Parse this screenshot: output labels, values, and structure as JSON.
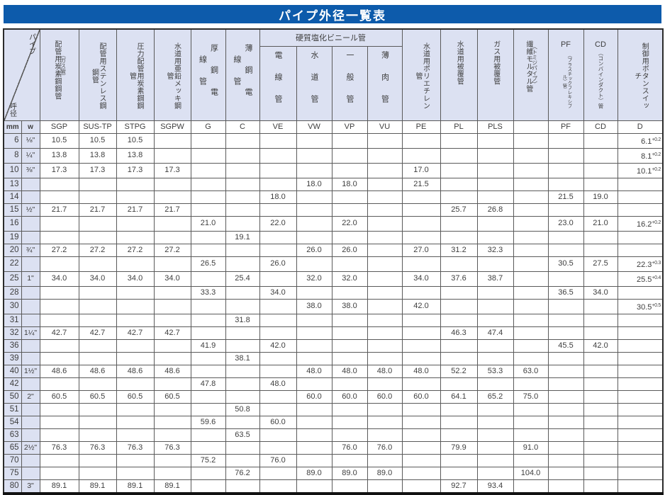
{
  "page_title": "パイプ外径一覧表",
  "colors": {
    "title_bg": "#0d5bab",
    "header_bg": "#dce1f2",
    "grid": "#5a5a5a",
    "text": "#3e3e3e"
  },
  "headers": {
    "sgp": {
      "title": "配管用炭素鋼鋼管",
      "paren": "（ガス管）",
      "code": "SGP"
    },
    "sus": {
      "title": "配管用ステンレス鋼鋼管",
      "code": "SUS-TP"
    },
    "stpg": {
      "title": "圧力配管用炭素鋼鋼管",
      "code": "STPG"
    },
    "sgpw": {
      "title": "水道用亜鉛メッキ鋼管",
      "code": "SGPW"
    },
    "g": {
      "title": "厚鋼電線管",
      "code": "G"
    },
    "c": {
      "title": "薄鋼電線管",
      "code": "C"
    },
    "vinyl_group": {
      "title": "硬質塩化ビニール管"
    },
    "ve": {
      "title": "電線管",
      "code": "VE"
    },
    "vw": {
      "title": "水道管",
      "code": "VW"
    },
    "vp": {
      "title": "一般管",
      "code": "VP"
    },
    "vu": {
      "title": "薄肉管",
      "code": "VU"
    },
    "pe": {
      "title": "水道用ポリエチレン管",
      "code": "PE"
    },
    "pl": {
      "title": "水道用被覆管",
      "code": "PL"
    },
    "pls": {
      "title": "ガス用被覆管",
      "code": "PLS"
    },
    "fm": {
      "title": "繊維モルタル管",
      "paren": "〈トミジパイプ〉",
      "code": ""
    },
    "pf": {
      "prefix": "PF",
      "small": "（プラスチックフレキシブル）管",
      "code": "PF"
    },
    "cd": {
      "prefix": "CD",
      "small": "（コンバインダクト）管",
      "code": "CD"
    },
    "d": {
      "title": "制御用ボタンスイッチ",
      "code": "D"
    }
  },
  "table": {
    "corner_top_right": "パイプ",
    "corner_bottom_left": "呼径",
    "unit_mm": "mm",
    "unit_w": "w",
    "col_keys": [
      "sgp",
      "sus",
      "stpg",
      "sgpw",
      "g",
      "c",
      "ve",
      "vw",
      "vp",
      "vu",
      "pe",
      "pl",
      "pls",
      "fm",
      "pf",
      "cd",
      "d"
    ],
    "rows": [
      {
        "mm": "6",
        "w": "⅛\"",
        "cells": [
          "10.5",
          "10.5",
          "10.5",
          "",
          "",
          "",
          "",
          "",
          "",
          "",
          "",
          "",
          "",
          "",
          "",
          "",
          "6.1^+0.2"
        ]
      },
      {
        "mm": "8",
        "w": "¼\"",
        "cells": [
          "13.8",
          "13.8",
          "13.8",
          "",
          "",
          "",
          "",
          "",
          "",
          "",
          "",
          "",
          "",
          "",
          "",
          "",
          "8.1^+0.2"
        ]
      },
      {
        "mm": "10",
        "w": "⅜\"",
        "cells": [
          "17.3",
          "17.3",
          "17.3",
          "17.3",
          "",
          "",
          "",
          "",
          "",
          "",
          "17.0",
          "",
          "",
          "",
          "",
          "",
          "10.1^+0.2"
        ]
      },
      {
        "mm": "13",
        "w": "",
        "cells": [
          "",
          "",
          "",
          "",
          "",
          "",
          "",
          "18.0",
          "18.0",
          "",
          "21.5",
          "",
          "",
          "",
          "",
          "",
          ""
        ]
      },
      {
        "mm": "14",
        "w": "",
        "cells": [
          "",
          "",
          "",
          "",
          "",
          "",
          "18.0",
          "",
          "",
          "",
          "",
          "",
          "",
          "",
          "21.5",
          "19.0",
          ""
        ]
      },
      {
        "mm": "15",
        "w": "½\"",
        "cells": [
          "21.7",
          "21.7",
          "21.7",
          "21.7",
          "",
          "",
          "",
          "",
          "",
          "",
          "",
          "25.7",
          "26.8",
          "",
          "",
          "",
          ""
        ]
      },
      {
        "mm": "16",
        "w": "",
        "cells": [
          "",
          "",
          "",
          "",
          "21.0",
          "",
          "22.0",
          "",
          "22.0",
          "",
          "",
          "",
          "",
          "",
          "23.0",
          "21.0",
          "16.2^+0.2"
        ]
      },
      {
        "mm": "19",
        "w": "",
        "cells": [
          "",
          "",
          "",
          "",
          "",
          "19.1",
          "",
          "",
          "",
          "",
          "",
          "",
          "",
          "",
          "",
          "",
          ""
        ]
      },
      {
        "mm": "20",
        "w": "¾\"",
        "cells": [
          "27.2",
          "27.2",
          "27.2",
          "27.2",
          "",
          "",
          "",
          "26.0",
          "26.0",
          "",
          "27.0",
          "31.2",
          "32.3",
          "",
          "",
          "",
          ""
        ]
      },
      {
        "mm": "22",
        "w": "",
        "cells": [
          "",
          "",
          "",
          "",
          "26.5",
          "",
          "26.0",
          "",
          "",
          "",
          "",
          "",
          "",
          "",
          "30.5",
          "27.5",
          "22.3^+0.3"
        ]
      },
      {
        "mm": "25",
        "w": "1\"",
        "cells": [
          "34.0",
          "34.0",
          "34.0",
          "34.0",
          "",
          "25.4",
          "",
          "32.0",
          "32.0",
          "",
          "34.0",
          "37.6",
          "38.7",
          "",
          "",
          "",
          "25.5^+0.4"
        ]
      },
      {
        "mm": "28",
        "w": "",
        "cells": [
          "",
          "",
          "",
          "",
          "33.3",
          "",
          "34.0",
          "",
          "",
          "",
          "",
          "",
          "",
          "",
          "36.5",
          "34.0",
          ""
        ]
      },
      {
        "mm": "30",
        "w": "",
        "cells": [
          "",
          "",
          "",
          "",
          "",
          "",
          "",
          "38.0",
          "38.0",
          "",
          "42.0",
          "",
          "",
          "",
          "",
          "",
          "30.5^+0.5"
        ]
      },
      {
        "mm": "31",
        "w": "",
        "cells": [
          "",
          "",
          "",
          "",
          "",
          "31.8",
          "",
          "",
          "",
          "",
          "",
          "",
          "",
          "",
          "",
          "",
          ""
        ]
      },
      {
        "mm": "32",
        "w": "1¼\"",
        "cells": [
          "42.7",
          "42.7",
          "42.7",
          "42.7",
          "",
          "",
          "",
          "",
          "",
          "",
          "",
          "46.3",
          "47.4",
          "",
          "",
          "",
          ""
        ]
      },
      {
        "mm": "36",
        "w": "",
        "cells": [
          "",
          "",
          "",
          "",
          "41.9",
          "",
          "42.0",
          "",
          "",
          "",
          "",
          "",
          "",
          "",
          "45.5",
          "42.0",
          ""
        ]
      },
      {
        "mm": "39",
        "w": "",
        "cells": [
          "",
          "",
          "",
          "",
          "",
          "38.1",
          "",
          "",
          "",
          "",
          "",
          "",
          "",
          "",
          "",
          "",
          ""
        ]
      },
      {
        "mm": "40",
        "w": "1½\"",
        "cells": [
          "48.6",
          "48.6",
          "48.6",
          "48.6",
          "",
          "",
          "",
          "48.0",
          "48.0",
          "48.0",
          "48.0",
          "52.2",
          "53.3",
          "63.0",
          "",
          "",
          ""
        ]
      },
      {
        "mm": "42",
        "w": "",
        "cells": [
          "",
          "",
          "",
          "",
          "47.8",
          "",
          "48.0",
          "",
          "",
          "",
          "",
          "",
          "",
          "",
          "",
          "",
          ""
        ]
      },
      {
        "mm": "50",
        "w": "2\"",
        "cells": [
          "60.5",
          "60.5",
          "60.5",
          "60.5",
          "",
          "",
          "",
          "60.0",
          "60.0",
          "60.0",
          "60.0",
          "64.1",
          "65.2",
          "75.0",
          "",
          "",
          ""
        ]
      },
      {
        "mm": "51",
        "w": "",
        "cells": [
          "",
          "",
          "",
          "",
          "",
          "50.8",
          "",
          "",
          "",
          "",
          "",
          "",
          "",
          "",
          "",
          "",
          ""
        ]
      },
      {
        "mm": "54",
        "w": "",
        "cells": [
          "",
          "",
          "",
          "",
          "59.6",
          "",
          "60.0",
          "",
          "",
          "",
          "",
          "",
          "",
          "",
          "",
          "",
          ""
        ]
      },
      {
        "mm": "63",
        "w": "",
        "cells": [
          "",
          "",
          "",
          "",
          "",
          "63.5",
          "",
          "",
          "",
          "",
          "",
          "",
          "",
          "",
          "",
          "",
          ""
        ]
      },
      {
        "mm": "65",
        "w": "2½\"",
        "cells": [
          "76.3",
          "76.3",
          "76.3",
          "76.3",
          "",
          "",
          "",
          "",
          "76.0",
          "76.0",
          "",
          "79.9",
          "",
          "91.0",
          "",
          "",
          ""
        ]
      },
      {
        "mm": "70",
        "w": "",
        "cells": [
          "",
          "",
          "",
          "",
          "75.2",
          "",
          "76.0",
          "",
          "",
          "",
          "",
          "",
          "",
          "",
          "",
          "",
          ""
        ]
      },
      {
        "mm": "75",
        "w": "",
        "cells": [
          "",
          "",
          "",
          "",
          "",
          "76.2",
          "",
          "89.0",
          "89.0",
          "89.0",
          "",
          "",
          "",
          "104.0",
          "",
          "",
          ""
        ]
      },
      {
        "mm": "80",
        "w": "3\"",
        "cells": [
          "89.1",
          "89.1",
          "89.1",
          "89.1",
          "",
          "",
          "",
          "",
          "",
          "",
          "",
          "92.7",
          "93.4",
          "",
          "",
          "",
          ""
        ]
      }
    ]
  }
}
